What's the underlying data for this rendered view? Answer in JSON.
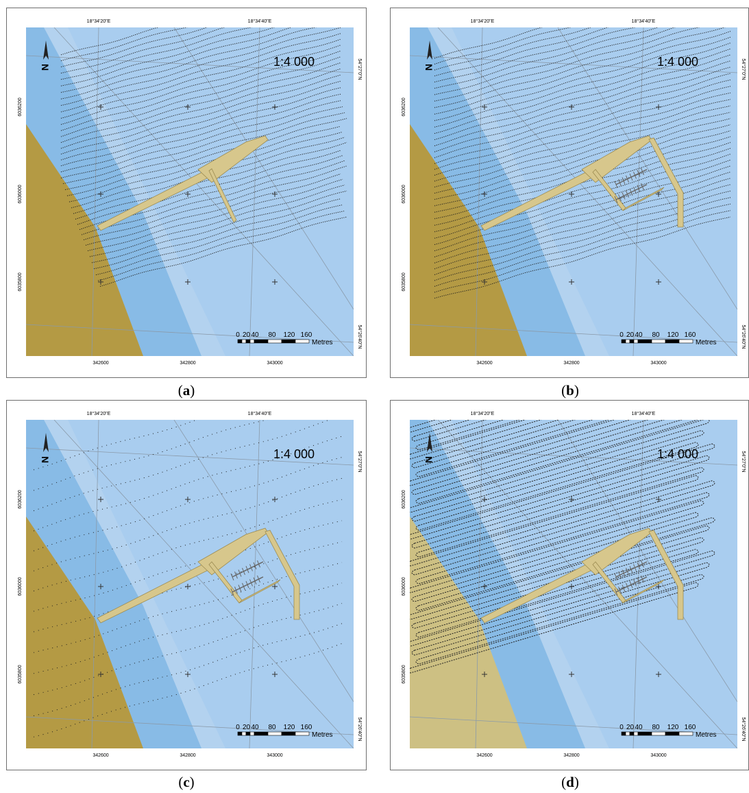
{
  "panels": [
    {
      "id": "a",
      "caption_letter": "a",
      "track_style": "dense-dotted-pre"
    },
    {
      "id": "b",
      "caption_letter": "b",
      "track_style": "dense-dotted-post"
    },
    {
      "id": "c",
      "caption_letter": "c",
      "track_style": "sparse-dotted"
    },
    {
      "id": "d",
      "caption_letter": "d",
      "track_style": "looped"
    }
  ],
  "map": {
    "scale_text": "1:4 000",
    "top_labels": [
      "18°34'20\"E",
      "18°34'40\"E"
    ],
    "bottom_labels": [
      "342600",
      "342800",
      "343000"
    ],
    "left_labels": [
      "6036200",
      "6036000",
      "6035800"
    ],
    "right_labels": [
      "54°27'0\"N",
      "54°26'40\"N"
    ],
    "scalebar_ticks": [
      "0",
      "20",
      "40",
      "80",
      "120",
      "160"
    ],
    "scalebar_unit": "Metres",
    "north_symbol": "north-arrow",
    "colors": {
      "land": "#b49a44",
      "land_light": "#cdc083",
      "shallow_water": "#88bbe6",
      "mid_water": "#b3d2ef",
      "deep_water": "#a9cdef",
      "pier": "#d7c78c",
      "pier_outline": "#9c8c52",
      "track": "#1e1e1e"
    }
  }
}
